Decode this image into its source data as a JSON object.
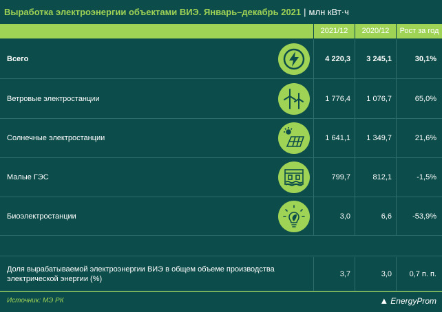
{
  "header": {
    "title": "Выработка электроэнергии объектами ВИЭ. Январь–декабрь 2021",
    "separator": "|",
    "unit": "млн кВт·ч"
  },
  "chart_data": {
    "type": "table",
    "columns": [
      "2021/12",
      "2020/12",
      "Рост за год"
    ],
    "rows": [
      {
        "label": "Всего",
        "icon": "lightning-bolt-icon",
        "v2021": "4 220,3",
        "v2020": "3 245,1",
        "growth": "30,1%",
        "bold": true
      },
      {
        "label": "Ветровые электростанции",
        "icon": "wind-turbine-icon",
        "v2021": "1 776,4",
        "v2020": "1 076,7",
        "growth": "65,0%",
        "bold": false
      },
      {
        "label": "Солнечные электростанции",
        "icon": "solar-panel-icon",
        "v2021": "1 641,1",
        "v2020": "1 349,7",
        "growth": "21,6%",
        "bold": false
      },
      {
        "label": "Малые ГЭС",
        "icon": "hydro-dam-icon",
        "v2021": "799,7",
        "v2020": "812,1",
        "growth": "-1,5%",
        "bold": false
      },
      {
        "label": "Биоэлектростанции",
        "icon": "bio-bulb-icon",
        "v2021": "3,0",
        "v2020": "6,6",
        "growth": "-53,9%",
        "bold": false
      }
    ],
    "share_row": {
      "label": "Доля вырабатываемой электроэнергии ВИЭ в общем объеме производства электрической энергии (%)",
      "v2021": "3,7",
      "v2020": "3,0",
      "growth": "0,7 п. п."
    }
  },
  "footer": {
    "source": "Источник: МЭ РК",
    "brand": "EnergyProm"
  },
  "colors": {
    "background": "#0c4c4a",
    "accent": "#9fd356",
    "text": "#ffffff"
  }
}
